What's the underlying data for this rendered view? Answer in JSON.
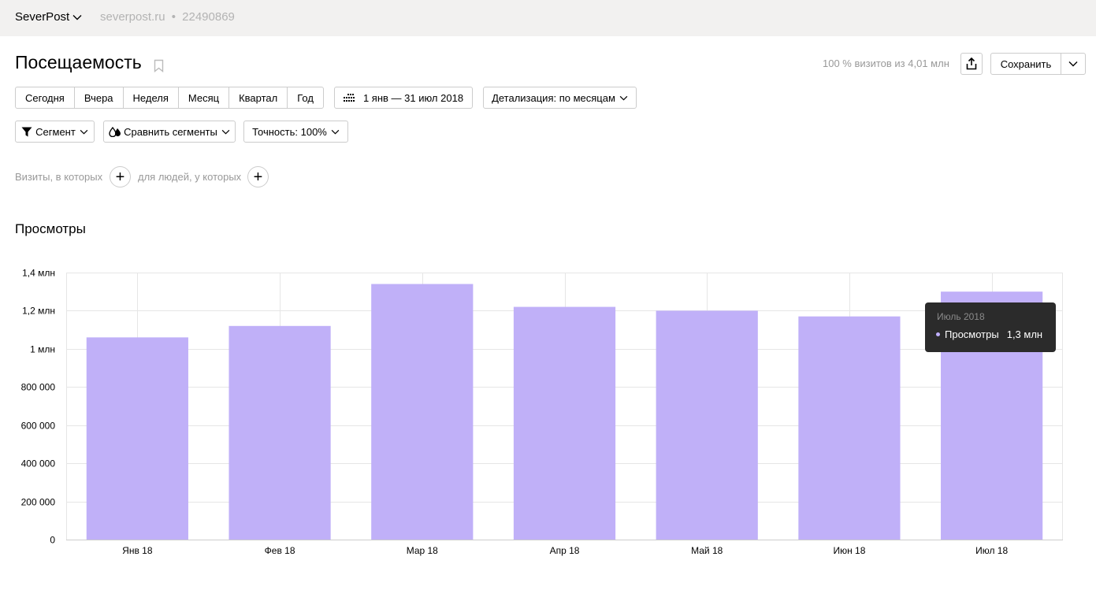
{
  "header": {
    "site_name": "SeverPost",
    "site_domain": "severpost.ru",
    "separator": "•",
    "counter_id": "22490869"
  },
  "report": {
    "title": "Посещаемость",
    "summary": "100 % визитов из 4,01 млн",
    "save_label": "Сохранить"
  },
  "periods": [
    "Сегодня",
    "Вчера",
    "Неделя",
    "Месяц",
    "Квартал",
    "Год"
  ],
  "date_range": "1 янв — 31 июл 2018",
  "detalization": "Детализация: по месяцам",
  "segment_label": "Сегмент",
  "compare_label": "Сравнить сегменты",
  "accuracy_label": "Точность: 100%",
  "filters": {
    "visits_label": "Визиты, в которых",
    "people_label": "для людей, у которых",
    "add_symbol": "+"
  },
  "chart_heading": "Просмотры",
  "tooltip": {
    "title": "Июль 2018",
    "series": "Просмотры",
    "value": "1,3 млн"
  },
  "chart_data": {
    "type": "bar",
    "title": "Просмотры",
    "categories": [
      "Янв 18",
      "Фев 18",
      "Мар 18",
      "Апр 18",
      "Май 18",
      "Июн 18",
      "Июл 18"
    ],
    "values": [
      1060000,
      1120000,
      1340000,
      1220000,
      1200000,
      1170000,
      1300000
    ],
    "ylim": [
      0,
      1400000
    ],
    "yticks": [
      0,
      200000,
      400000,
      600000,
      800000,
      1000000,
      1200000,
      1400000
    ],
    "ytick_labels": [
      "0",
      "200 000",
      "400 000",
      "600 000",
      "800 000",
      "1 млн",
      "1,2 млн",
      "1,4 млн"
    ],
    "grid": true,
    "color": "#c0b0f8",
    "xlabel": "",
    "ylabel": ""
  }
}
